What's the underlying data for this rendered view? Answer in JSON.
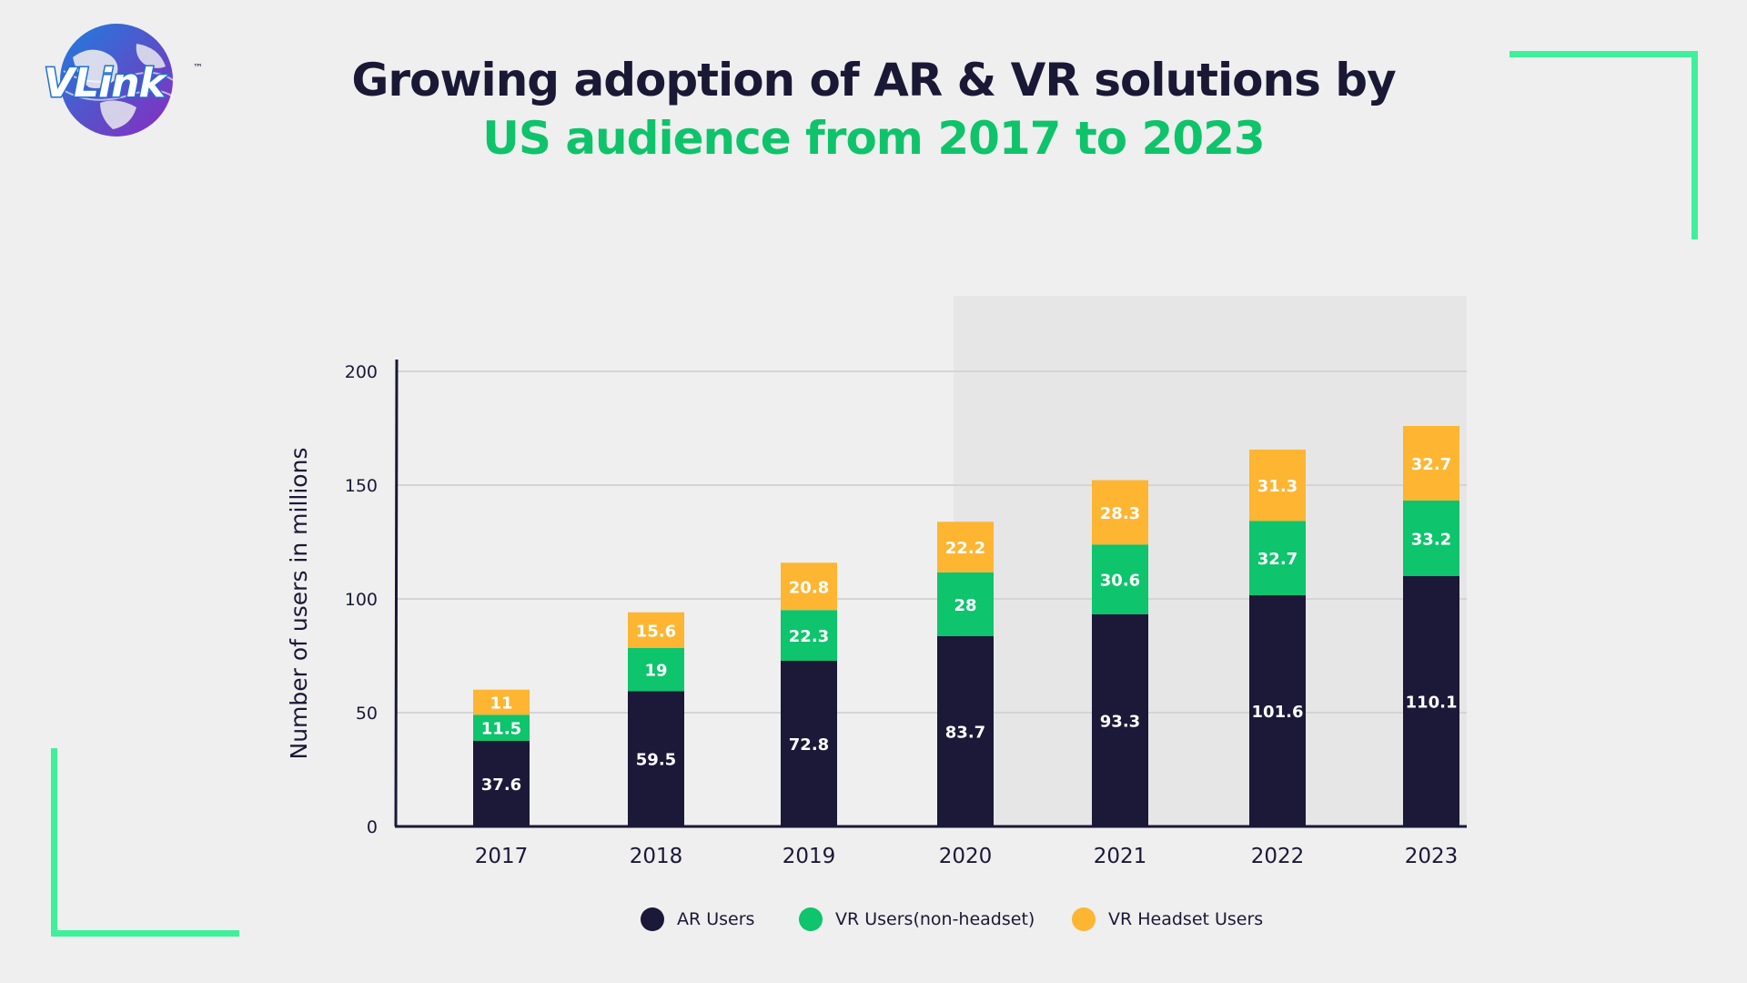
{
  "brand": {
    "logo_text": "VLink",
    "trademark": "™"
  },
  "header": {
    "title_line1": "Growing adoption of AR & VR solutions by",
    "title_line2": "US audience from 2017 to 2023"
  },
  "colors": {
    "ar": "#1b1838",
    "vr_non_headset": "#0ec46c",
    "vr_headset": "#fdb532",
    "title_dark": "#1b1836",
    "title_green": "#0fc36a",
    "corner_accent": "#3ff09a"
  },
  "legend": [
    {
      "label": "AR Users",
      "color": "#1b1838"
    },
    {
      "label": "VR Users(non-headset)",
      "color": "#0ec46c"
    },
    {
      "label": "VR Headset Users",
      "color": "#fdb532"
    }
  ],
  "chart_data": {
    "type": "bar",
    "stacked": true,
    "title": "Growing adoption of AR & VR solutions by US audience from 2017 to 2023",
    "xlabel": "",
    "ylabel": "Number of users in millions",
    "ylim": [
      0,
      200
    ],
    "yticks": [
      0,
      50,
      100,
      150,
      200
    ],
    "grid": true,
    "legend_position": "bottom",
    "categories": [
      "2017",
      "2018",
      "2019",
      "2020",
      "2021",
      "2022",
      "2023"
    ],
    "series": [
      {
        "name": "AR Users",
        "color": "#1b1838",
        "values": [
          37.6,
          59.5,
          72.8,
          83.7,
          93.3,
          101.6,
          110.1
        ]
      },
      {
        "name": "VR Users(non-headset)",
        "color": "#0ec46c",
        "values": [
          11.5,
          19,
          22.3,
          28,
          30.6,
          32.7,
          33.2
        ]
      },
      {
        "name": "VR Headset Users",
        "color": "#fdb532",
        "values": [
          11,
          15.6,
          20.8,
          22.2,
          28.3,
          31.3,
          32.7
        ]
      }
    ]
  }
}
